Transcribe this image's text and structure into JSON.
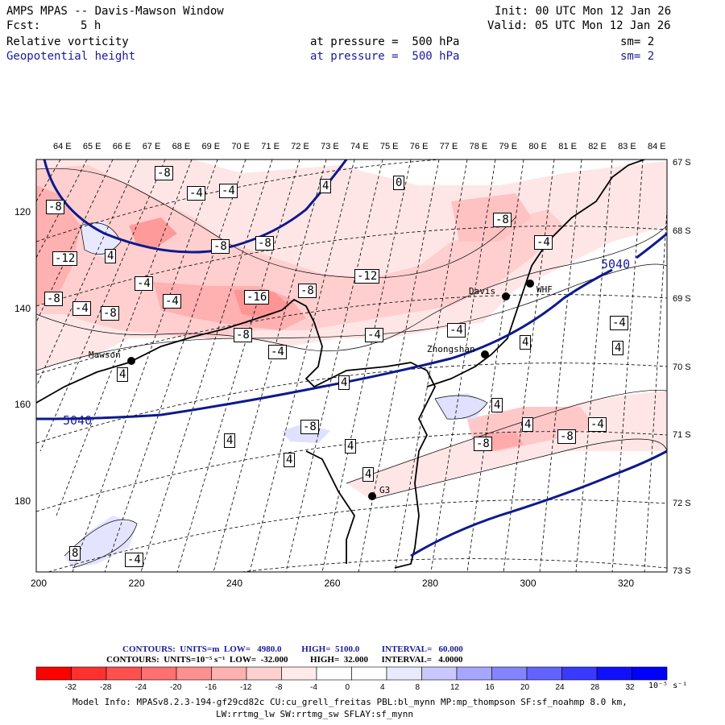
{
  "header": {
    "title": "AMPS MPAS -- Davis-Mawson Window",
    "fcst_label": "Fcst:",
    "fcst_value": "5 h",
    "init": "Init: 00 UTC Mon 12 Jan 26",
    "valid": "Valid: 05 UTC Mon 12 Jan 26",
    "field1": {
      "name": "Relative vorticity",
      "level": "at pressure =  500 hPa",
      "sm": "sm= 2"
    },
    "field2": {
      "name": "Geopotential height",
      "level": "at pressure =  500 hPa",
      "sm": "sm= 2"
    }
  },
  "map": {
    "top_lon_labels": [
      "64 E",
      "65 E",
      "66 E",
      "67 E",
      "68 E",
      "69 E",
      "70 E",
      "71 E",
      "72 E",
      "73 E",
      "74 E",
      "75 E",
      "76 E",
      "77 E",
      "78 E",
      "79 E",
      "80 E",
      "81 E",
      "82 E",
      "83 E",
      "84 E"
    ],
    "right_lat_labels": [
      "67 S",
      "68 S",
      "69 S",
      "70 S",
      "71 S",
      "72 S",
      "73 S"
    ],
    "x_ticks": [
      "200",
      "220",
      "240",
      "260",
      "280",
      "300",
      "320"
    ],
    "y_ticks": [
      "120",
      "140",
      "160",
      "180"
    ],
    "stations": [
      {
        "name": "Davis"
      },
      {
        "name": "WHF"
      },
      {
        "name": "Mawson"
      },
      {
        "name": "Zhongshan"
      },
      {
        "name": "G3"
      }
    ],
    "height_labels": [
      "5040",
      "5040"
    ],
    "vort_labels": [
      "-8",
      "-8",
      "-4",
      "-4",
      "-8",
      "-12",
      "-4",
      "-8",
      "-8",
      "-4",
      "-8",
      "-4",
      "-16",
      "-8",
      "-12",
      "-8",
      "-8",
      "-4",
      "-4",
      "-4",
      "-4",
      "4",
      "4",
      "4",
      "4",
      "4",
      "4",
      "4",
      "-8",
      "-8",
      "-4",
      "-4",
      "4",
      "4",
      "-8",
      "4",
      "4",
      "-4",
      "8",
      "4",
      "0"
    ],
    "colors": {
      "height_contour": "#0d1a8c",
      "coast": "#000000"
    }
  },
  "legend": {
    "line1": "CONTOURS:  UNITS=m  LOW=   4980.0         HIGH=  5100.0          INTERVAL=   60.000",
    "line2": "CONTOURS:  UNITS=10⁻⁵ s⁻¹  LOW=  -32.000          HIGH=  32.000      INTERVAL=   4.0000",
    "colorbar_labels": [
      "-32",
      "-28",
      "-24",
      "-20",
      "-16",
      "-12",
      "-8",
      "-4",
      "0",
      "4",
      "8",
      "12",
      "16",
      "20",
      "24",
      "28",
      "32"
    ],
    "units": "10⁻⁵ s⁻¹",
    "colorbar_colors": [
      "#ff0000",
      "#ff3030",
      "#ff5050",
      "#ff7070",
      "#ff9090",
      "#ffb0b0",
      "#ffd0d0",
      "#ffeaea",
      "#ffffff",
      "#ffffff",
      "#eaeaff",
      "#c8c8ff",
      "#a6a6ff",
      "#8484ff",
      "#6262ff",
      "#3a3aff",
      "#1010ff",
      "#0000ff"
    ]
  },
  "footer": {
    "model_info": "Model Info: MPASv8.2.3-194-gf29cd82c CU:cu_grell_freitas PBL:bl_mynn MP:mp_thompson SF:sf_noahmp 8.0 km,",
    "model_info2": "LW:rrtmg_lw SW:rrtmg_sw SFLAY:sf_mynn"
  }
}
